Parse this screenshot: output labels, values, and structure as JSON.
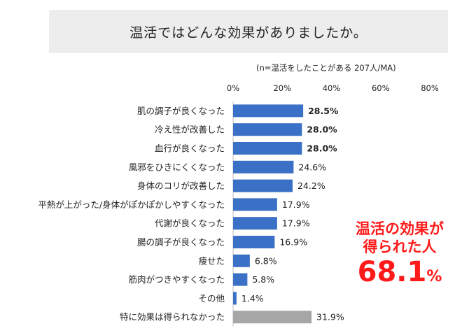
{
  "title": "温活ではどんな効果がありましたか。",
  "note": "(n=温活をしたことがある 207人/MA)",
  "callout": {
    "line1": "温活の効果が",
    "line2": "得られた人",
    "value": "68.1",
    "unit": "%"
  },
  "colors": {
    "primary": "#3a70c5",
    "neutral": "#a6a6a6",
    "accent": "#ff1a1a"
  },
  "chart_data": {
    "type": "bar",
    "orientation": "horizontal",
    "xlim": [
      0,
      80
    ],
    "ticks": [
      "0%",
      "20%",
      "40%",
      "60%",
      "80%"
    ],
    "tick_values": [
      0,
      20,
      40,
      60,
      80
    ],
    "grid": false,
    "categories": [
      "肌の調子が良くなった",
      "冷え性が改善した",
      "血行が良くなった",
      "風邪をひきにくくなった",
      "身体のコリが改善した",
      "平熱が上がった/身体がぽかぽかしやすくなった",
      "代謝が良くなった",
      "腸の調子が良くなった",
      "痩せた",
      "筋肉がつきやすくなった",
      "その他",
      "特に効果は得られなかった"
    ],
    "values": [
      28.5,
      28.0,
      28.0,
      24.6,
      24.2,
      17.9,
      17.9,
      16.9,
      6.8,
      5.8,
      1.4,
      31.9
    ],
    "labels": [
      "28.5%",
      "28.0%",
      "28.0%",
      "24.6%",
      "24.2%",
      "17.9%",
      "17.9%",
      "16.9%",
      "6.8%",
      "5.8%",
      "1.4%",
      "31.9%"
    ],
    "bold": [
      true,
      true,
      true,
      false,
      false,
      false,
      false,
      false,
      false,
      false,
      false,
      false
    ],
    "highlight_color": [
      false,
      false,
      false,
      false,
      false,
      false,
      false,
      false,
      false,
      false,
      false,
      true
    ]
  }
}
